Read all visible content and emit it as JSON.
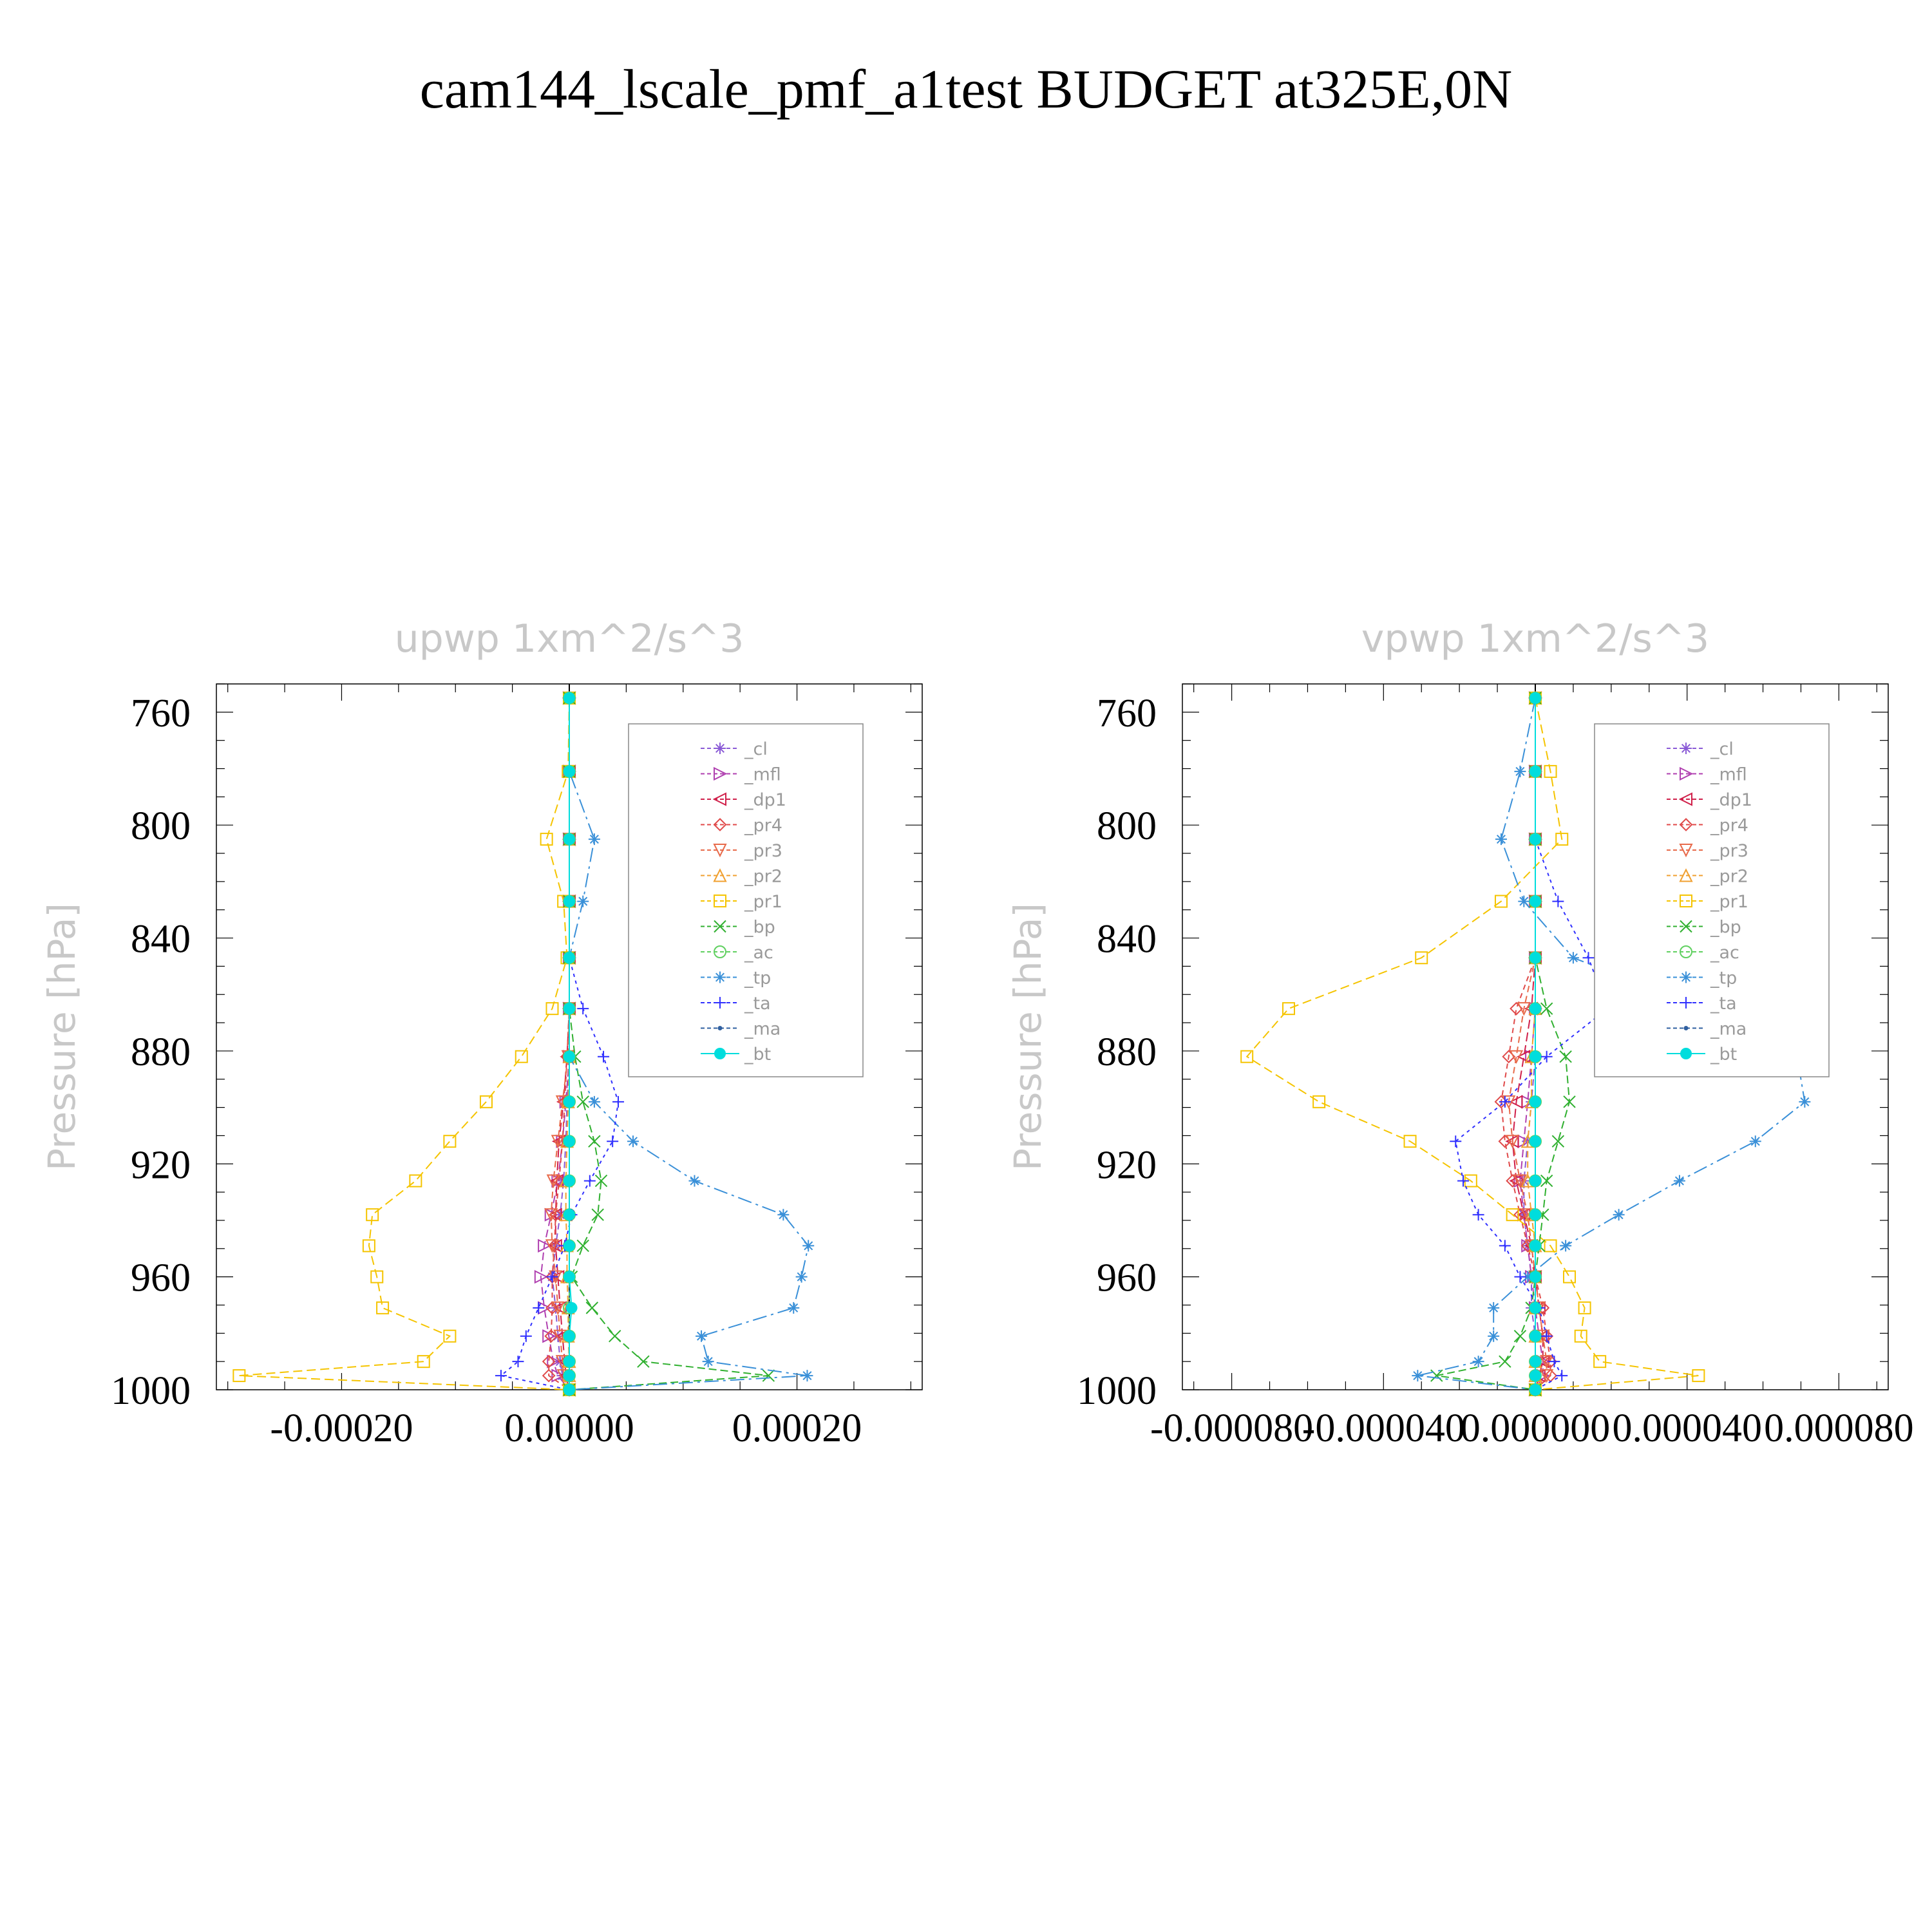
{
  "title": "cam144_lscale_pmf_a1test  BUDGET at325E,0N",
  "colors": {
    "cl": "#8a5ad6",
    "mfl": "#b040b0",
    "dp1": "#d0204a",
    "pr4": "#e04a4a",
    "pr3": "#e86a4a",
    "pr2": "#f0a030",
    "pr1": "#f5c400",
    "bp": "#30b030",
    "ac": "#60d060",
    "tp": "#3a90d8",
    "ta": "#3030ff",
    "ma": "#3060a0",
    "bt": "#00dddd"
  },
  "chart_data": [
    {
      "type": "line",
      "title": "upwp    1xm^2/s^3",
      "ylabel": "Pressure [hPa]",
      "xlabel": "",
      "xlim": [
        -0.00031,
        0.00031
      ],
      "ylim": [
        1000,
        750
      ],
      "xticks": [
        -0.0002,
        0.0,
        0.0002
      ],
      "xtick_labels": [
        "-0.00020",
        "0.00000",
        "0.00020"
      ],
      "yticks": [
        760,
        800,
        840,
        880,
        920,
        960,
        1000
      ],
      "ytick_labels": [
        "760",
        "800",
        "840",
        "880",
        "920",
        "960",
        "1000"
      ],
      "y": [
        755,
        781,
        805,
        827,
        847,
        865,
        882,
        898,
        912,
        926,
        938,
        949,
        960,
        971,
        981,
        990,
        995,
        1000
      ],
      "legend": [
        "_cl",
        "_mfl",
        "_dp1",
        "_pr4",
        "_pr3",
        "_pr2",
        "_pr1",
        "_bp",
        "_ac",
        "_tp",
        "_ta",
        "_ma",
        "_bt"
      ],
      "legend_position": "top-right",
      "series": [
        {
          "key": "cl",
          "name": "_cl",
          "marker": "star",
          "dash": "10,6",
          "values": [
            0,
            0,
            0,
            0,
            0,
            0,
            0,
            -2e-06,
            -3e-06,
            -5e-06,
            -8e-06,
            -1.2e-05,
            -1.5e-05,
            -1.2e-05,
            -1e-05,
            -8e-06,
            -6e-06,
            0
          ]
        },
        {
          "key": "mfl",
          "name": "_mfl",
          "marker": "tri-right",
          "dash": "12,6",
          "values": [
            0,
            0,
            0,
            0,
            0,
            0,
            0,
            -3e-06,
            -6e-06,
            -1e-05,
            -1.6e-05,
            -2.2e-05,
            -2.5e-05,
            -2.2e-05,
            -1.8e-05,
            -1.4e-05,
            -1e-05,
            0
          ]
        },
        {
          "key": "dp1",
          "name": "_dp1",
          "marker": "tri-left",
          "dash": "14,6",
          "values": [
            0,
            0,
            0,
            0,
            0,
            0,
            -2e-06,
            -5e-06,
            -9e-06,
            -1.1e-05,
            -1.2e-05,
            -1.2e-05,
            -1e-05,
            -8e-06,
            -6e-06,
            -4e-06,
            -3e-06,
            0
          ]
        },
        {
          "key": "pr4",
          "name": "_pr4",
          "marker": "diamond",
          "dash": "8,6",
          "values": [
            0,
            0,
            0,
            0,
            0,
            0,
            -2e-06,
            -4e-06,
            -6e-06,
            -9e-06,
            -1.2e-05,
            -1.3e-05,
            -1.5e-05,
            -1.5e-05,
            -1.6e-05,
            -1.8e-05,
            -1.8e-05,
            0
          ]
        },
        {
          "key": "pr3",
          "name": "_pr3",
          "marker": "tri-down",
          "dash": "10,6",
          "values": [
            0,
            0,
            0,
            0,
            0,
            0,
            -1e-06,
            -6e-06,
            -1e-05,
            -1.4e-05,
            -1.6e-05,
            -1.5e-05,
            -1.2e-05,
            -1e-05,
            -8e-06,
            -6e-06,
            -5e-06,
            0
          ]
        },
        {
          "key": "pr2",
          "name": "_pr2",
          "marker": "tri-up",
          "dash": "10,6",
          "values": [
            0,
            0,
            0,
            0,
            0,
            0,
            0,
            -1e-06,
            -2e-06,
            -3e-06,
            -3e-06,
            -2e-06,
            -2e-06,
            -1e-06,
            -1e-06,
            0,
            0,
            0
          ]
        },
        {
          "key": "pr1",
          "name": "_pr1",
          "marker": "square",
          "dash": "14,7",
          "values": [
            0,
            -1e-06,
            -2e-05,
            -5e-06,
            -2e-06,
            -1.5e-05,
            -4.2e-05,
            -7.3e-05,
            -0.000105,
            -0.000135,
            -0.000173,
            -0.000176,
            -0.000169,
            -0.000164,
            -0.000105,
            -0.000128,
            -0.00029,
            0
          ]
        },
        {
          "key": "bp",
          "name": "_bp",
          "marker": "x",
          "dash": "12,6",
          "values": [
            0,
            0,
            0,
            0,
            0,
            0,
            5e-06,
            1.2e-05,
            2.2e-05,
            2.8e-05,
            2.5e-05,
            1.2e-05,
            2e-06,
            2e-05,
            4e-05,
            6.5e-05,
            0.000175,
            0
          ]
        },
        {
          "key": "ac",
          "name": "_ac",
          "marker": "circle",
          "dash": "14,6",
          "values": [
            0,
            0,
            0,
            0,
            0,
            0,
            0,
            0,
            0,
            0,
            0,
            0,
            0,
            0,
            0,
            0,
            0,
            0
          ]
        },
        {
          "key": "tp",
          "name": "_tp",
          "marker": "asterisk",
          "dash": "22,7,4,7",
          "values": [
            0,
            0,
            2.2e-05,
            1.2e-05,
            0,
            0,
            0,
            2.2e-05,
            5.6e-05,
            0.00011,
            0.000188,
            0.00021,
            0.000204,
            0.000197,
            0.000116,
            0.000122,
            0.000209,
            0
          ]
        },
        {
          "key": "ta",
          "name": "_ta",
          "marker": "plus",
          "dash": "5,6",
          "values": [
            0,
            0,
            0,
            0,
            0,
            1.2e-05,
            3e-05,
            4.3e-05,
            3.8e-05,
            1.8e-05,
            2e-06,
            -4e-06,
            -1.5e-05,
            -2.7e-05,
            -3.8e-05,
            -4.5e-05,
            -6e-05,
            0
          ]
        },
        {
          "key": "ma",
          "name": "_ma",
          "marker": "dot",
          "dash": "3,5",
          "values": [
            0,
            0,
            0,
            0,
            0,
            0,
            0,
            0,
            0,
            0,
            0,
            0,
            0,
            0,
            0,
            0,
            0,
            0
          ]
        },
        {
          "key": "bt",
          "name": "_bt",
          "marker": "filled-circle",
          "dash": "",
          "values": [
            0,
            0,
            0,
            0,
            0,
            0,
            0,
            0,
            0,
            0,
            0,
            0,
            0,
            2e-06,
            0,
            0,
            0,
            0
          ]
        }
      ]
    },
    {
      "type": "line",
      "title": "vpwp    1xm^2/s^3",
      "ylabel": "Pressure [hPa]",
      "xlabel": "",
      "xlim": [
        -9.3e-05,
        9.3e-05
      ],
      "ylim": [
        1000,
        750
      ],
      "xticks": [
        -8e-05,
        -4e-05,
        0.0,
        4e-05,
        8e-05
      ],
      "xtick_labels": [
        "-0.000080",
        "-0.000040",
        "0.000000",
        "0.000040",
        "0.000080"
      ],
      "yticks": [
        760,
        800,
        840,
        880,
        920,
        960,
        1000
      ],
      "ytick_labels": [
        "760",
        "800",
        "840",
        "880",
        "920",
        "960",
        "1000"
      ],
      "y": [
        755,
        781,
        805,
        827,
        847,
        865,
        882,
        898,
        912,
        926,
        938,
        949,
        960,
        971,
        981,
        990,
        995,
        1000
      ],
      "legend": [
        "_cl",
        "_mfl",
        "_dp1",
        "_pr4",
        "_pr3",
        "_pr2",
        "_pr1",
        "_bp",
        "_ac",
        "_tp",
        "_ta",
        "_ma",
        "_bt"
      ],
      "legend_position": "top-right",
      "series": [
        {
          "key": "cl",
          "name": "_cl",
          "marker": "star",
          "dash": "10,6",
          "values": [
            0,
            0,
            0,
            0,
            0,
            0,
            0,
            -1e-06,
            -2e-06,
            -3e-06,
            -3e-06,
            -2e-06,
            -1e-06,
            -1e-06,
            0,
            0,
            0,
            0
          ]
        },
        {
          "key": "mfl",
          "name": "_mfl",
          "marker": "tri-right",
          "dash": "12,6",
          "values": [
            0,
            0,
            0,
            0,
            0,
            0,
            -1e-06,
            -2e-06,
            -3e-06,
            -4e-06,
            -3e-06,
            -2e-06,
            -1e-06,
            0,
            1e-06,
            2e-06,
            2e-06,
            0
          ]
        },
        {
          "key": "dp1",
          "name": "_dp1",
          "marker": "tri-left",
          "dash": "14,6",
          "values": [
            0,
            0,
            0,
            0,
            0,
            -1e-06,
            -3e-06,
            -5e-06,
            -6e-06,
            -5e-06,
            -3e-06,
            -1e-06,
            0,
            1e-06,
            2e-06,
            2e-06,
            1e-06,
            0
          ]
        },
        {
          "key": "pr4",
          "name": "_pr4",
          "marker": "diamond",
          "dash": "8,6",
          "values": [
            0,
            0,
            0,
            0,
            0,
            -5e-06,
            -7e-06,
            -9e-06,
            -8e-06,
            -6e-06,
            -4e-06,
            -2e-06,
            0,
            2e-06,
            3e-06,
            4e-06,
            4e-06,
            0
          ]
        },
        {
          "key": "pr3",
          "name": "_pr3",
          "marker": "tri-down",
          "dash": "10,6",
          "values": [
            0,
            0,
            0,
            0,
            0,
            -3e-06,
            -5e-06,
            -7e-06,
            -6e-06,
            -4e-06,
            -2e-06,
            -1e-06,
            0,
            1e-06,
            2e-06,
            3e-06,
            3e-06,
            0
          ]
        },
        {
          "key": "pr2",
          "name": "_pr2",
          "marker": "tri-up",
          "dash": "10,6",
          "values": [
            0,
            0,
            0,
            0,
            0,
            0,
            -1e-06,
            -1e-06,
            -2e-06,
            -2e-06,
            -1e-06,
            0,
            0,
            0,
            0,
            0,
            0,
            0
          ]
        },
        {
          "key": "pr1",
          "name": "_pr1",
          "marker": "square",
          "dash": "14,7",
          "values": [
            0,
            4e-06,
            7e-06,
            -9e-06,
            -3e-05,
            -6.5e-05,
            -7.6e-05,
            -5.7e-05,
            -3.3e-05,
            -1.7e-05,
            -6e-06,
            4e-06,
            9e-06,
            1.3e-05,
            1.2e-05,
            1.7e-05,
            4.3e-05,
            0
          ]
        },
        {
          "key": "bp",
          "name": "_bp",
          "marker": "x",
          "dash": "12,6",
          "values": [
            0,
            0,
            0,
            0,
            0,
            3e-06,
            8e-06,
            9e-06,
            6e-06,
            3e-06,
            2e-06,
            1e-06,
            0,
            -1e-06,
            -4e-06,
            -8e-06,
            -2.6e-05,
            0
          ]
        },
        {
          "key": "ac",
          "name": "_ac",
          "marker": "circle",
          "dash": "14,6",
          "values": [
            0,
            0,
            0,
            0,
            0,
            0,
            0,
            0,
            0,
            0,
            0,
            0,
            0,
            0,
            0,
            0,
            0,
            0
          ]
        },
        {
          "key": "tp",
          "name": "_tp",
          "marker": "asterisk",
          "dash": "22,7,4,7",
          "values": [
            0,
            -4e-06,
            -9e-06,
            -3e-06,
            1e-05,
            4.5e-05,
            6.9e-05,
            7.1e-05,
            5.8e-05,
            3.8e-05,
            2.2e-05,
            8e-06,
            -2e-06,
            -1.1e-05,
            -1.1e-05,
            -1.5e-05,
            -3.1e-05,
            0
          ]
        },
        {
          "key": "ta",
          "name": "_ta",
          "marker": "plus",
          "dash": "5,6",
          "values": [
            0,
            0,
            0,
            6e-06,
            1.4e-05,
            1.9e-05,
            3e-06,
            -8e-06,
            -2.1e-05,
            -1.9e-05,
            -1.5e-05,
            -8e-06,
            -4e-06,
            1e-06,
            3e-06,
            5e-06,
            7e-06,
            0
          ]
        },
        {
          "key": "ma",
          "name": "_ma",
          "marker": "dot",
          "dash": "3,5",
          "values": [
            0,
            0,
            0,
            0,
            0,
            0,
            0,
            0,
            0,
            0,
            0,
            0,
            0,
            0,
            0,
            0,
            0,
            0
          ]
        },
        {
          "key": "bt",
          "name": "_bt",
          "marker": "filled-circle",
          "dash": "",
          "values": [
            0,
            0,
            0,
            0,
            0,
            0,
            0,
            0,
            0,
            0,
            0,
            0,
            0,
            0,
            0,
            0,
            0,
            0
          ]
        }
      ]
    }
  ]
}
